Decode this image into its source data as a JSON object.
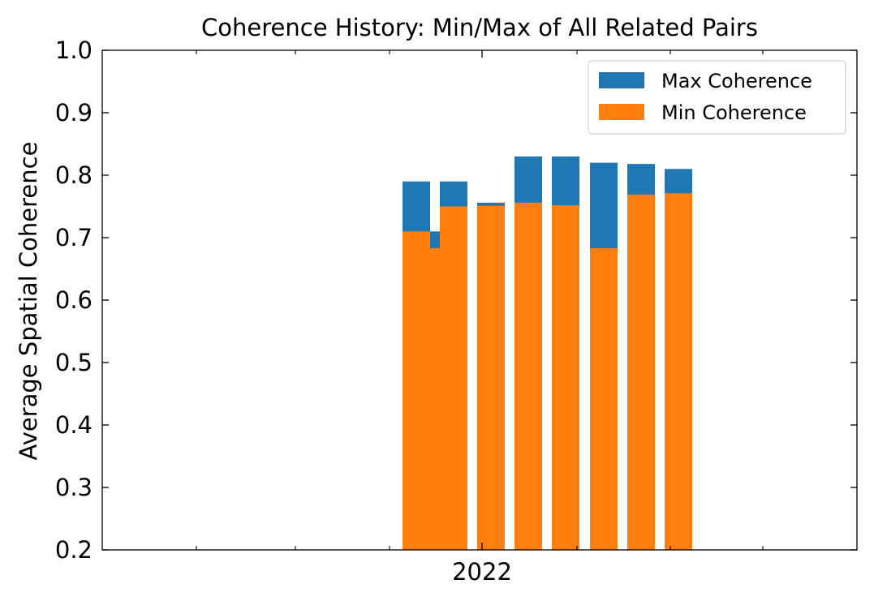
{
  "chart_data": {
    "type": "bar",
    "title": "Coherence History: Min/Max of All Related Pairs",
    "xlabel": "",
    "ylabel": "Average Spatial Coherence",
    "ylim": [
      0.2,
      1.0
    ],
    "yticks": [
      "0.2",
      "0.3",
      "0.4",
      "0.5",
      "0.6",
      "0.7",
      "0.8",
      "0.9",
      "1.0"
    ],
    "xticks": [
      "2022"
    ],
    "legend_position": "top-right",
    "grid": false,
    "series": [
      {
        "name": "Max Coherence",
        "color": "#1f77b4",
        "values": [
          0.79,
          0.71,
          0.79,
          0.756,
          0.83,
          0.83,
          0.82,
          0.818,
          0.81
        ]
      },
      {
        "name": "Min Coherence",
        "color": "#ff7f0e",
        "values": [
          0.71,
          0.683,
          0.75,
          0.751,
          0.756,
          0.752,
          0.683,
          0.769,
          0.771
        ]
      }
    ]
  }
}
